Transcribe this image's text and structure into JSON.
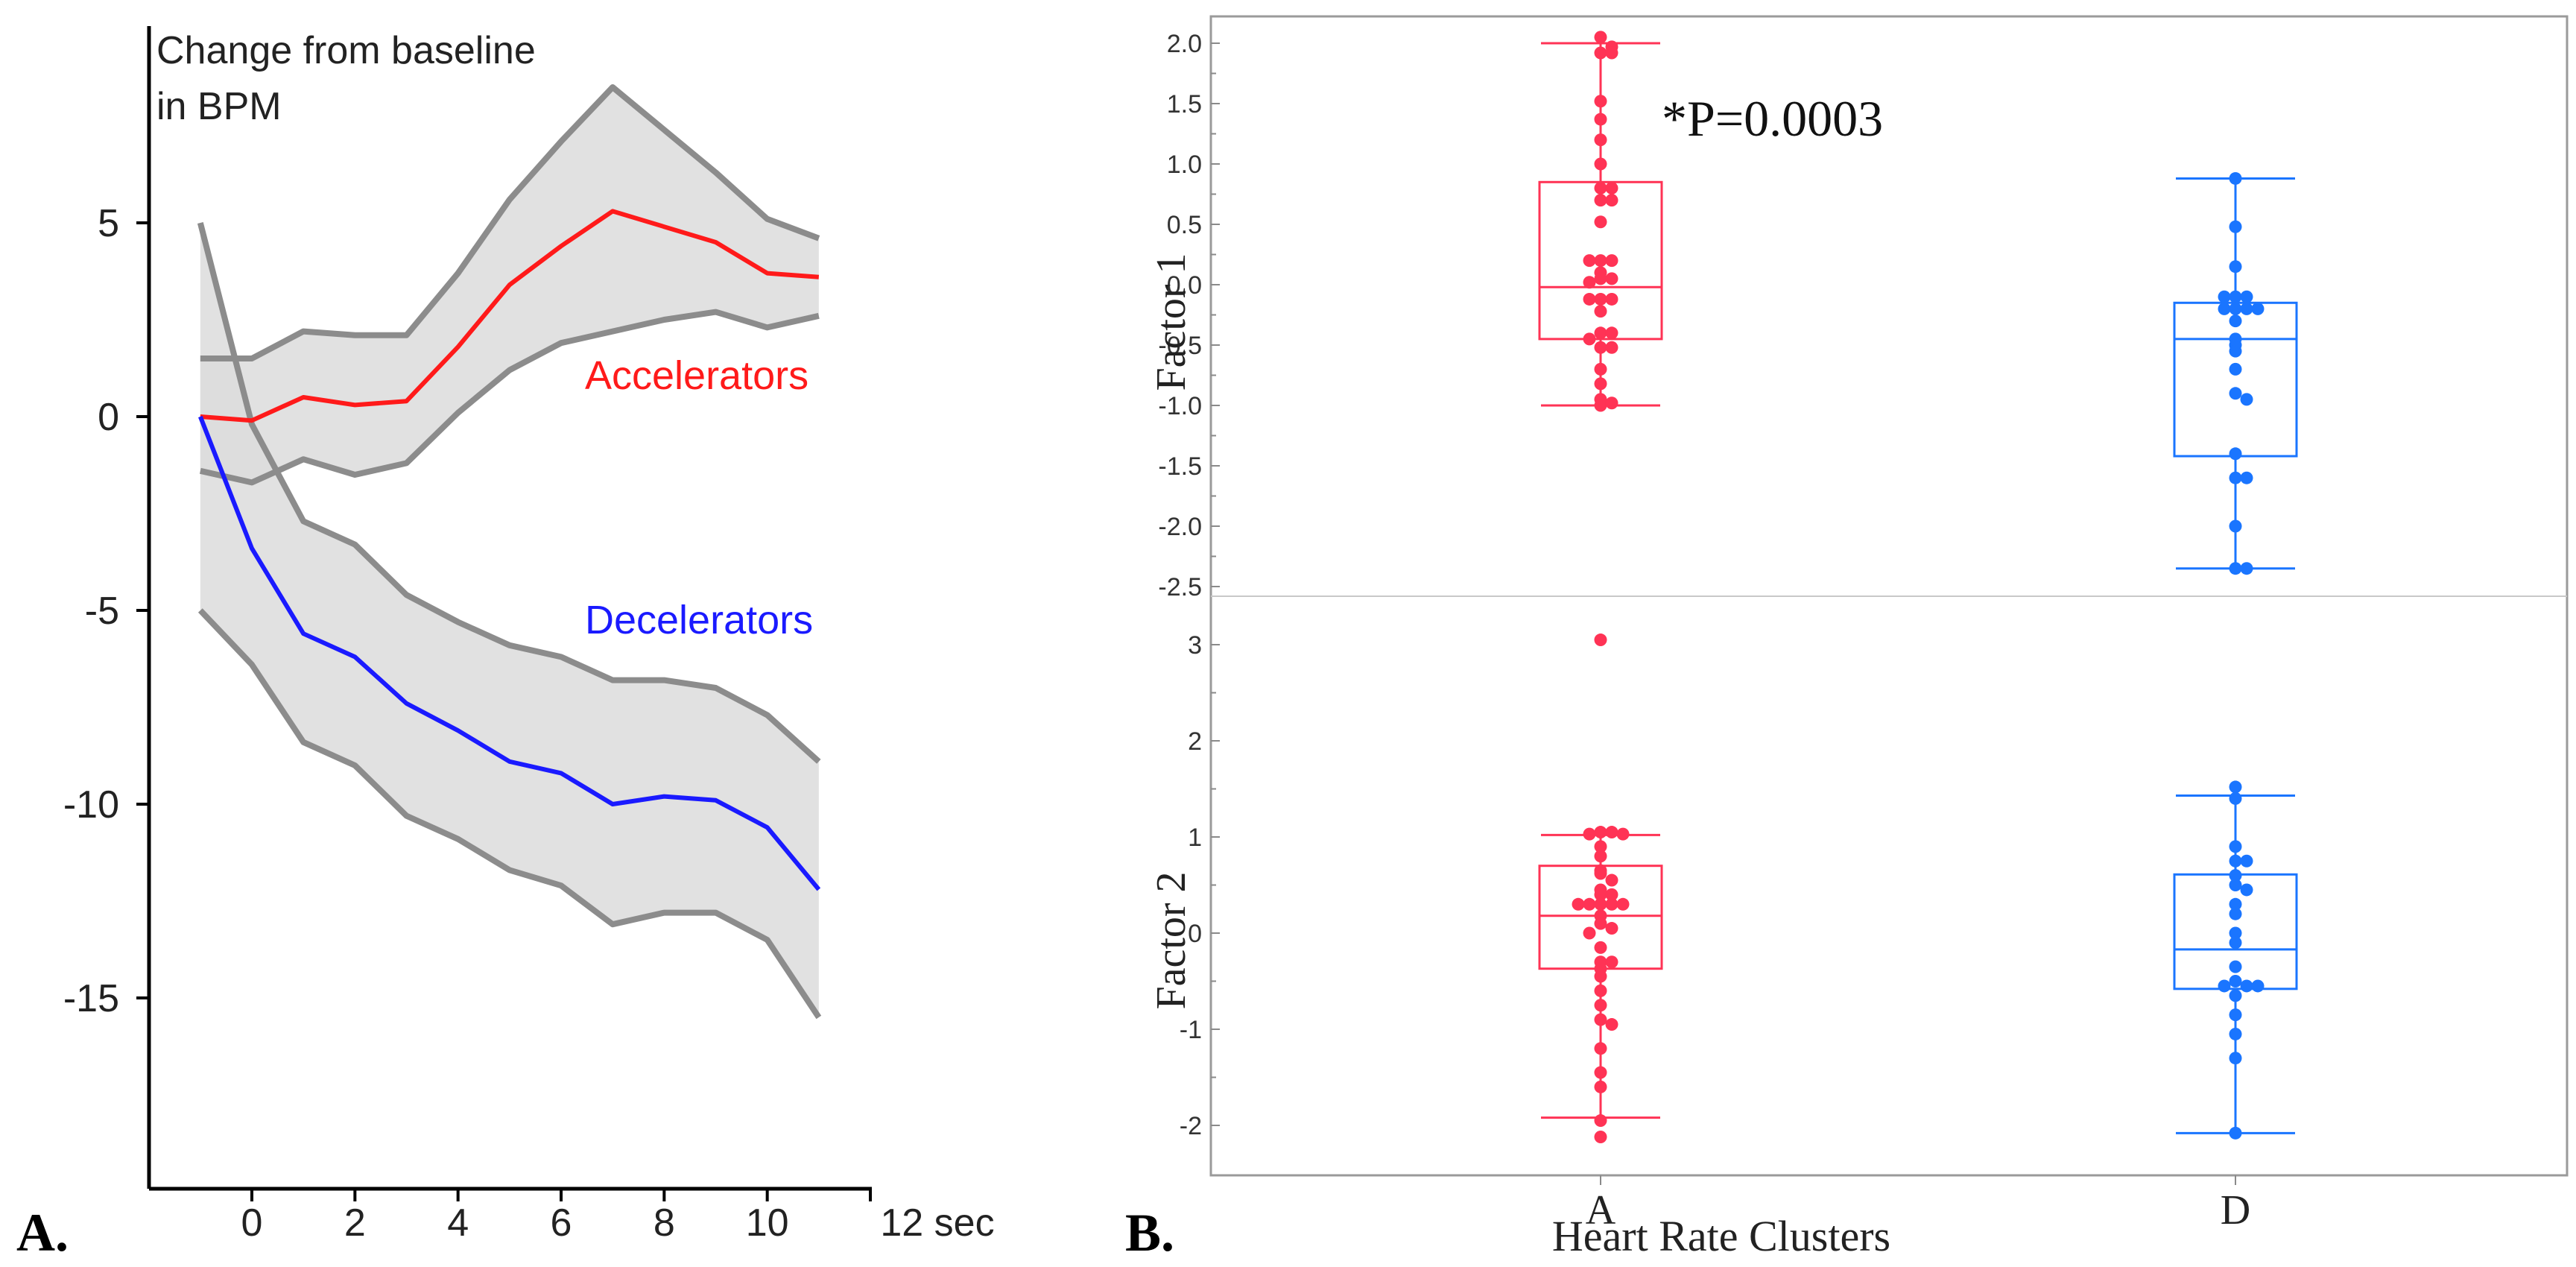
{
  "chart_data": [
    {
      "panel": "A.",
      "type": "line",
      "ylabel": "Change from baseline\nin BPM",
      "xlabel": "sec",
      "x": [
        -1,
        0,
        1,
        2,
        3,
        4,
        5,
        6,
        7,
        8,
        9,
        10,
        11
      ],
      "xlim": [
        -2,
        12
      ],
      "ylim": [
        -20,
        10
      ],
      "xticks": [
        0,
        2,
        4,
        6,
        8,
        10,
        12
      ],
      "xtick_labels": [
        "0",
        "2",
        "4",
        "6",
        "8",
        "10",
        "12 sec"
      ],
      "yticks": [
        5,
        0,
        -5,
        -10,
        -15
      ],
      "ytick_labels": [
        "5",
        "0",
        "-5",
        "-10",
        "-15"
      ],
      "series": [
        {
          "name": "Accelerators",
          "color": "#ff1a1a",
          "values": [
            0,
            -0.1,
            0.5,
            0.3,
            0.4,
            1.8,
            3.4,
            4.4,
            5.3,
            4.9,
            4.5,
            3.7,
            3.6
          ],
          "upper": [
            1.5,
            1.5,
            2.2,
            2.1,
            2.1,
            3.7,
            5.6,
            7.1,
            8.5,
            7.4,
            6.3,
            5.1,
            4.6
          ],
          "lower": [
            -1.4,
            -1.7,
            -1.1,
            -1.5,
            -1.2,
            0.1,
            1.2,
            1.9,
            2.2,
            2.5,
            2.7,
            2.3,
            2.6
          ]
        },
        {
          "name": "Decelerators",
          "color": "#1a1aff",
          "values": [
            0,
            -3.4,
            -5.6,
            -6.2,
            -7.4,
            -8.1,
            -8.9,
            -9.2,
            -10.0,
            -9.8,
            -9.9,
            -10.6,
            -12.2
          ],
          "upper": [
            5.0,
            -0.2,
            -2.7,
            -3.3,
            -4.6,
            -5.3,
            -5.9,
            -6.2,
            -6.8,
            -6.8,
            -7.0,
            -7.7,
            -8.9
          ],
          "lower": [
            -5.0,
            -6.4,
            -8.4,
            -9.0,
            -10.3,
            -10.9,
            -11.7,
            -12.1,
            -13.1,
            -12.8,
            -12.8,
            -13.5,
            -15.5
          ]
        }
      ],
      "band_color": "#dcdcdc",
      "band_edge_color": "#8c8c8c"
    },
    {
      "panel": "B.",
      "type": "box",
      "xlabel": "Heart Rate Clusters",
      "categories": [
        "A",
        "D"
      ],
      "colors": [
        "#ff3355",
        "#1a75ff"
      ],
      "subplots": [
        {
          "ylabel": "Factor 1",
          "annotation": "*P=0.0003",
          "ylim": [
            -2.6,
            2.2
          ],
          "yticks": [
            2.0,
            1.5,
            1.0,
            0.5,
            0.0,
            -0.5,
            -1.0,
            -1.5,
            -2.0,
            -2.5
          ],
          "ytick_labels": [
            "2.0",
            "1.5",
            "1.0",
            "0.5",
            "0.0",
            "-0.5",
            "-1.0",
            "-1.5",
            "-2.0",
            "-2.5"
          ],
          "boxes": [
            {
              "category": "A",
              "whisker_low": -1.0,
              "q1": -0.45,
              "median": -0.02,
              "q3": 0.85,
              "whisker_high": 2.0,
              "points": [
                2.05,
                1.97,
                1.92,
                1.92,
                1.52,
                1.37,
                1.2,
                1.0,
                0.8,
                0.8,
                0.7,
                0.7,
                0.52,
                0.2,
                0.2,
                0.2,
                0.1,
                0.05,
                0.05,
                0.02,
                -0.12,
                -0.12,
                -0.12,
                -0.22,
                -0.4,
                -0.4,
                -0.45,
                -0.52,
                -0.52,
                -0.7,
                -0.82,
                -0.95,
                -1.0,
                -0.98
              ]
            },
            {
              "category": "D",
              "whisker_low": -2.35,
              "q1": -1.42,
              "median": -0.45,
              "q3": -0.15,
              "whisker_high": 0.88,
              "points": [
                0.88,
                0.48,
                0.15,
                -0.1,
                -0.1,
                -0.1,
                -0.2,
                -0.2,
                -0.2,
                -0.2,
                -0.3,
                -0.45,
                -0.5,
                -0.55,
                -0.7,
                -0.9,
                -0.95,
                -1.4,
                -1.6,
                -1.6,
                -2.0,
                -2.35,
                -2.35
              ]
            }
          ]
        },
        {
          "ylabel": "Factor 2",
          "annotation": "",
          "ylim": [
            -2.5,
            3.5
          ],
          "yticks": [
            3,
            2,
            1,
            0,
            -1,
            -2
          ],
          "ytick_labels": [
            "3",
            "2",
            "1",
            "0",
            "-1",
            "-2"
          ],
          "boxes": [
            {
              "category": "A",
              "whisker_low": -1.92,
              "q1": -0.37,
              "median": 0.18,
              "q3": 0.7,
              "whisker_high": 1.02,
              "points": [
                3.05,
                1.05,
                1.05,
                1.03,
                1.03,
                0.9,
                0.8,
                0.65,
                0.62,
                0.55,
                0.45,
                0.4,
                0.4,
                0.3,
                0.3,
                0.3,
                0.3,
                0.3,
                0.18,
                0.1,
                0.05,
                0.0,
                -0.15,
                -0.3,
                -0.3,
                -0.37,
                -0.45,
                -0.6,
                -0.75,
                -0.9,
                -0.95,
                -1.2,
                -1.45,
                -1.6,
                -1.95,
                -2.12
              ]
            },
            {
              "category": "D",
              "whisker_low": -2.08,
              "q1": -0.58,
              "median": -0.17,
              "q3": 0.61,
              "whisker_high": 1.43,
              "points": [
                1.52,
                1.4,
                0.9,
                0.75,
                0.75,
                0.6,
                0.5,
                0.45,
                0.3,
                0.2,
                0.0,
                -0.1,
                -0.35,
                -0.5,
                -0.55,
                -0.55,
                -0.55,
                -0.65,
                -0.85,
                -1.05,
                -1.3,
                -2.08
              ]
            }
          ]
        }
      ]
    }
  ]
}
